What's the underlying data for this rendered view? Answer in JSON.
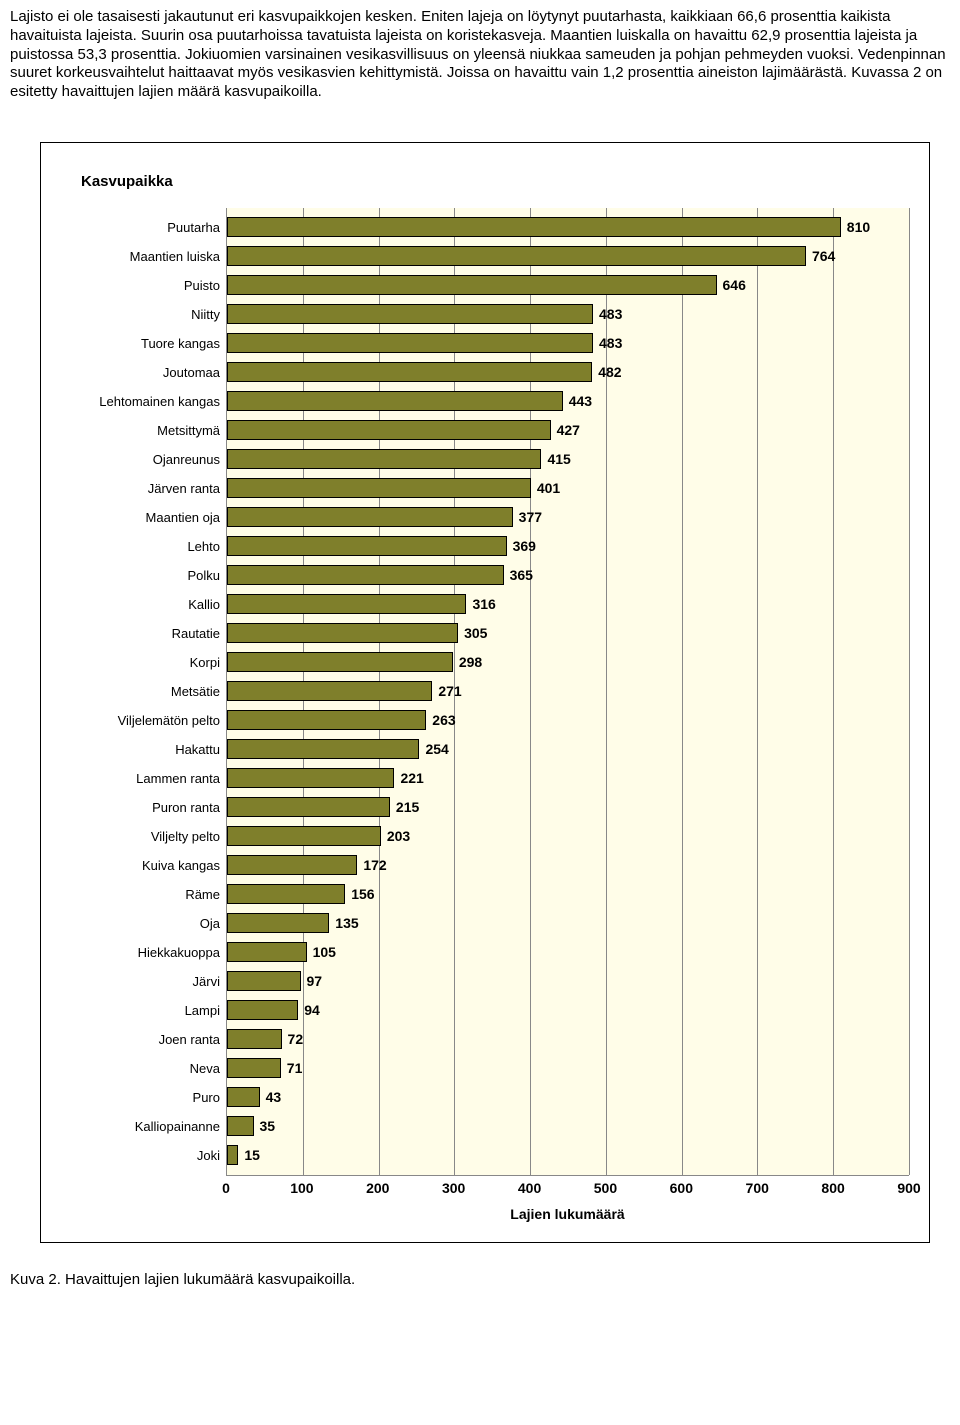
{
  "paragraph": "Lajisto ei ole tasaisesti jakautunut eri kasvupaikkojen kesken. Eniten lajeja on löytynyt puutarhasta, kaikkiaan 66,6 prosenttia kaikista havaituista lajeista. Suurin osa puutarhoissa tavatuista lajeista on koristekasveja. Maantien luiskalla on havaittu 62,9 prosenttia lajeista ja puistossa 53,3 prosenttia. Jokiuomien varsinainen vesikasvillisuus on yleensä niukkaa sameuden ja pohjan pehmeyden vuoksi. Vedenpinnan suuret korkeusvaihtelut haittaavat myös vesikasvien kehittymistä. Joissa on havaittu vain 1,2 prosenttia aineiston lajimäärästä. Kuvassa 2 on esitetty havaittujen lajien määrä  kasvupaikoilla.",
  "chart": {
    "type": "bar",
    "title": "Kasvupaikka",
    "x_title": "Lajien lukumäärä",
    "xlim": [
      0,
      900
    ],
    "xtick_step": 100,
    "background_color": "#fffde8",
    "grid_color": "#888888",
    "bar_color": "#7f7f2b",
    "bar_border_color": "#000000",
    "label_fontsize": 13,
    "value_fontsize": 14,
    "categories": [
      "Puutarha",
      "Maantien luiska",
      "Puisto",
      "Niitty",
      "Tuore kangas",
      "Joutomaa",
      "Lehtomainen kangas",
      "Metsittymä",
      "Ojanreunus",
      "Järven ranta",
      "Maantien oja",
      "Lehto",
      "Polku",
      "Kallio",
      "Rautatie",
      "Korpi",
      "Metsätie",
      "Viljelemätön pelto",
      "Hakattu",
      "Lammen ranta",
      "Puron ranta",
      "Viljelty pelto",
      "Kuiva kangas",
      "Räme",
      "Oja",
      "Hiekkakuoppa",
      "Järvi",
      "Lampi",
      "Joen ranta",
      "Neva",
      "Puro",
      "Kalliopainanne",
      "Joki"
    ],
    "values": [
      810,
      764,
      646,
      483,
      483,
      482,
      443,
      427,
      415,
      401,
      377,
      369,
      365,
      316,
      305,
      298,
      271,
      263,
      254,
      221,
      215,
      203,
      172,
      156,
      135,
      105,
      97,
      94,
      72,
      71,
      43,
      35,
      15
    ]
  },
  "caption": "Kuva 2. Havaittujen lajien lukumäärä kasvupaikoilla."
}
